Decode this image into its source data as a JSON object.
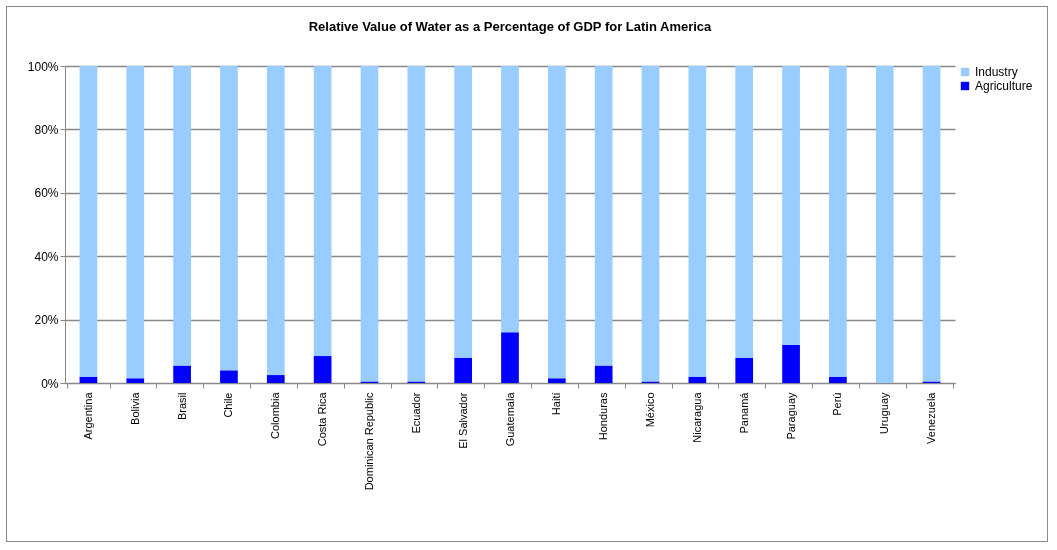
{
  "chart_data": {
    "type": "bar",
    "title": "Relative Value of Water as a Percentage of GDP for Latin America",
    "categories": [
      "Argentina",
      "Bolivia",
      "Brasil",
      "Chile",
      "Colombia",
      "Costa Rica",
      "Dominican Republic",
      "Ecuador",
      "El Salvador",
      "Guatemala",
      "Haití",
      "Honduras",
      "México",
      "Nicaragua",
      "Panamá",
      "Paraguay",
      "Perú",
      "Uruguay",
      "Venezuela"
    ],
    "stacked": true,
    "series": [
      {
        "name": "Agriculture",
        "color": "#0000ff",
        "values": [
          2,
          1.5,
          5.5,
          4,
          2.5,
          8.5,
          0.5,
          0.5,
          8,
          16,
          1.5,
          5.5,
          0.5,
          2,
          8,
          12,
          2,
          0,
          0.5
        ]
      },
      {
        "name": "Industry",
        "color": "#99ccff",
        "values": [
          98,
          98.5,
          94.5,
          96,
          97.5,
          91.5,
          99.5,
          99.5,
          92,
          84,
          98.5,
          94.5,
          99.5,
          98,
          92,
          88,
          98,
          100,
          99.5
        ]
      }
    ],
    "ylim": [
      0,
      100
    ],
    "yticks": [
      {
        "value": 0,
        "label": "0%"
      },
      {
        "value": 20,
        "label": "20%"
      },
      {
        "value": 40,
        "label": "40%"
      },
      {
        "value": 60,
        "label": "60%"
      },
      {
        "value": 80,
        "label": "80%"
      },
      {
        "value": 100,
        "label": "100%"
      }
    ],
    "grid": "y",
    "legend": "right"
  }
}
